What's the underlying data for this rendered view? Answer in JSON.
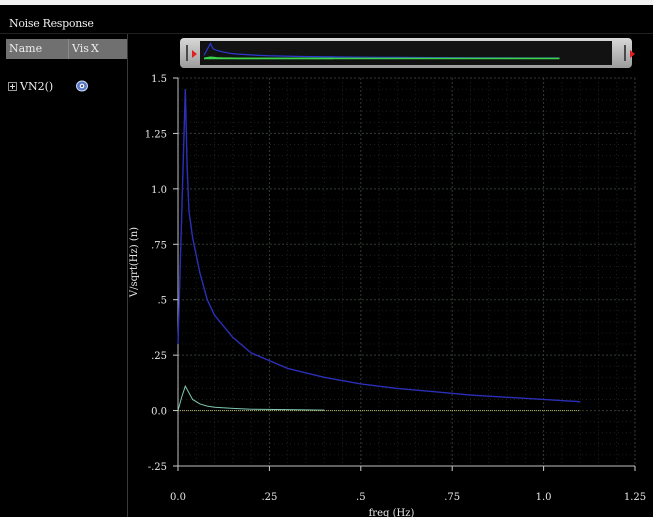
{
  "window": {
    "title": "Noise Response"
  },
  "signal_list": {
    "columns": {
      "name": "Name",
      "vis": "Vis",
      "x": "X"
    },
    "rows": [
      {
        "label": "VN2()",
        "expander": "plus",
        "visible_icon": "eye-icon"
      }
    ]
  },
  "colors": {
    "background": "#000000",
    "grid": "#2f3a2f",
    "trace_main": "#2b2fb8",
    "trace_secondary": "#7ec8b0",
    "trace_zero": "#b9b36a",
    "handle_arrow": "#e02020"
  },
  "chart_data": {
    "type": "line",
    "title": "",
    "xlabel": "freq (Hz)",
    "ylabel": "V/sqrt(Hz) (n)",
    "xlim": [
      0.0,
      1.25
    ],
    "ylim": [
      -0.25,
      1.5
    ],
    "x_ticks": [
      {
        "value": 0.0,
        "label": "0.0"
      },
      {
        "value": 0.25,
        "label": ".25"
      },
      {
        "value": 0.5,
        "label": ".5"
      },
      {
        "value": 0.75,
        "label": ".75"
      },
      {
        "value": 1.0,
        "label": "1.0"
      },
      {
        "value": 1.25,
        "label": "1.25"
      }
    ],
    "y_ticks": [
      {
        "value": 1.5,
        "label": "1.5"
      },
      {
        "value": 1.25,
        "label": "1.25"
      },
      {
        "value": 1.0,
        "label": "1.0"
      },
      {
        "value": 0.75,
        "label": ".75"
      },
      {
        "value": 0.5,
        "label": ".5"
      },
      {
        "value": 0.25,
        "label": ".25"
      },
      {
        "value": 0.0,
        "label": "0.0"
      },
      {
        "value": -0.25,
        "label": "-.25"
      }
    ],
    "grid": true,
    "series": [
      {
        "color": "#2b2fb8",
        "x": [
          0.0,
          0.02,
          0.025,
          0.03,
          0.04,
          0.06,
          0.08,
          0.1,
          0.15,
          0.2,
          0.3,
          0.4,
          0.5,
          0.6,
          0.7,
          0.8,
          0.9,
          1.0,
          1.1
        ],
        "y": [
          0.3,
          1.45,
          1.1,
          0.9,
          0.78,
          0.62,
          0.5,
          0.43,
          0.33,
          0.26,
          0.19,
          0.15,
          0.12,
          0.1,
          0.085,
          0.07,
          0.06,
          0.05,
          0.04
        ]
      },
      {
        "color": "#7ec8b0",
        "x": [
          0.0,
          0.01,
          0.02,
          0.03,
          0.04,
          0.06,
          0.08,
          0.1,
          0.15,
          0.2,
          0.3,
          0.4
        ],
        "y": [
          0.0,
          0.06,
          0.11,
          0.08,
          0.05,
          0.03,
          0.02,
          0.015,
          0.01,
          0.006,
          0.004,
          0.002
        ]
      },
      {
        "color": "#b9b36a",
        "x": [
          0.0,
          0.2,
          0.4,
          0.6,
          0.8,
          1.0,
          1.1
        ],
        "y": [
          0.0,
          0.0,
          0.0,
          0.0,
          0.0,
          0.0,
          0.0
        ]
      }
    ]
  }
}
